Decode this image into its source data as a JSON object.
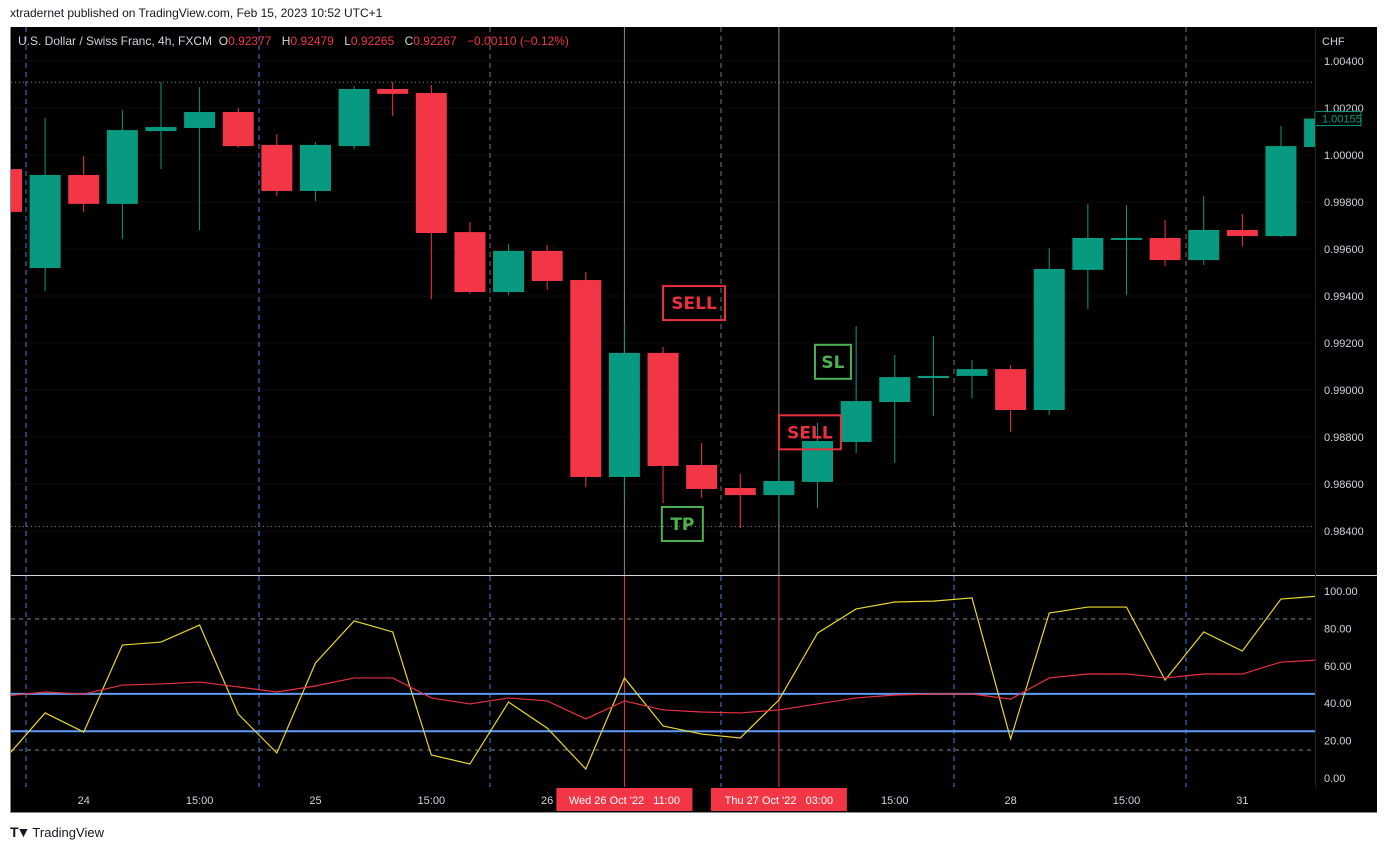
{
  "header": {
    "published": "xtradernet published on TradingView.com, Feb 15, 2023 10:52 UTC+1"
  },
  "legend": {
    "symbol": "U.S. Dollar / Swiss Franc, 4h, FXCM",
    "o_label": "O",
    "o": "0.92377",
    "h_label": "H",
    "h": "0.92479",
    "l_label": "L",
    "l": "0.92265",
    "c_label": "C",
    "c": "0.92267",
    "change": "−0.00110 (−0.12%)"
  },
  "footer": {
    "logo_text": "TradingView",
    "logo_mark": "17"
  },
  "colors": {
    "up": "#089981",
    "down": "#f23645",
    "osc_fast": "#e6d530",
    "osc_slow": "#e8313f",
    "level": "#5b9cf6",
    "signal_sell": "#e8313f",
    "signal_green": "#4caf50"
  },
  "chart_data": [
    {
      "type": "candlestick",
      "currency": "CHF",
      "ylim": [
        0.983,
        1.005
      ],
      "y_ticks": [
        "1.00400",
        "1.00200",
        "1.00000",
        "0.99800",
        "0.99600",
        "0.99400",
        "0.99200",
        "0.99000",
        "0.98800",
        "0.98600",
        "0.98400"
      ],
      "last_price": "1.00155",
      "x_labels": [
        {
          "index": 2,
          "text": "24"
        },
        {
          "index": 5,
          "text": "15:00"
        },
        {
          "index": 8,
          "text": "25"
        },
        {
          "index": 11,
          "text": "15:00"
        },
        {
          "index": 14,
          "text": "26"
        },
        {
          "index": 16,
          "text": "Wed 26 Oct '22   11:00",
          "highlight": true
        },
        {
          "index": 20,
          "text": "Thu 27 Oct '22   03:00",
          "highlight": true
        },
        {
          "index": 23,
          "text": "15:00"
        },
        {
          "index": 26,
          "text": "28"
        },
        {
          "index": 29,
          "text": "15:00"
        },
        {
          "index": 32,
          "text": "31"
        }
      ],
      "candles_ohlc": [
        [
          0.9994,
          0.99958,
          0.99745,
          0.99758
        ],
        [
          0.99519,
          1.00158,
          0.99421,
          0.99915
        ],
        [
          0.99915,
          0.99996,
          0.99758,
          0.99792
        ],
        [
          0.99792,
          1.00192,
          0.99642,
          1.00106
        ],
        [
          1.00102,
          1.00311,
          0.9994,
          1.00119
        ],
        [
          1.00115,
          1.00289,
          0.99681,
          1.00183
        ],
        [
          1.00183,
          1.002,
          1.0003,
          1.00038
        ],
        [
          1.00043,
          1.00089,
          0.99826,
          0.99847
        ],
        [
          0.99847,
          1.00055,
          0.99804,
          1.00043
        ],
        [
          1.00038,
          1.00294,
          1.00025,
          1.00281
        ],
        [
          1.00281,
          1.00311,
          1.00166,
          1.0026
        ],
        [
          1.00264,
          1.00298,
          0.99387,
          0.99668
        ],
        [
          0.99672,
          0.99715,
          0.99409,
          0.99417
        ],
        [
          0.99417,
          0.99621,
          0.99404,
          0.99592
        ],
        [
          0.99592,
          0.99617,
          0.99426,
          0.99464
        ],
        [
          0.99468,
          0.99502,
          0.98587,
          0.9863
        ],
        [
          0.9863,
          0.99281,
          0.98541,
          0.99158
        ],
        [
          0.99158,
          0.99183,
          0.98519,
          0.98677
        ],
        [
          0.98681,
          0.98775,
          0.98541,
          0.98579
        ],
        [
          0.98583,
          0.98643,
          0.98413,
          0.98553
        ],
        [
          0.98553,
          0.98702,
          0.98455,
          0.98613
        ],
        [
          0.98609,
          0.9886,
          0.98498,
          0.98783
        ],
        [
          0.98779,
          0.99272,
          0.98732,
          0.98953
        ],
        [
          0.98949,
          0.99149,
          0.9869,
          0.99055
        ],
        [
          0.99051,
          0.9923,
          0.98889,
          0.9906
        ],
        [
          0.9906,
          0.99128,
          0.98966,
          0.99089
        ],
        [
          0.99089,
          0.99106,
          0.98822,
          0.98915
        ],
        [
          0.98915,
          0.99604,
          0.98894,
          0.99515
        ],
        [
          0.99511,
          0.99792,
          0.99345,
          0.99647
        ],
        [
          0.99642,
          0.99787,
          0.99404,
          0.99647
        ],
        [
          0.99647,
          0.99723,
          0.99528,
          0.99553
        ],
        [
          0.99553,
          0.99826,
          0.99532,
          0.99681
        ],
        [
          0.99681,
          0.99749,
          0.99612,
          0.99655
        ],
        [
          0.99655,
          1.00124,
          0.99651,
          1.00038
        ],
        [
          1.00034,
          1.00166,
          1.0003,
          1.00155
        ]
      ],
      "annotations": [
        {
          "text": "SELL",
          "index": 17,
          "price": 0.9937,
          "color": "sell"
        },
        {
          "text": "TP",
          "index": 17.5,
          "price": 0.9843,
          "color": "green"
        },
        {
          "text": "SELL",
          "index": 20,
          "price": 0.9882,
          "color": "sell"
        },
        {
          "text": "SL",
          "index": 21.4,
          "price": 0.9912,
          "color": "green"
        }
      ],
      "price_levels_dotted": [
        1.0031,
        0.9842
      ]
    },
    {
      "type": "line",
      "ylim": [
        0,
        100
      ],
      "y_ticks": [
        "100.00",
        "80.00",
        "60.00",
        "40.00",
        "20.00",
        "0.00"
      ],
      "levels_solid": [
        45,
        25
      ],
      "levels_dashed": [
        85,
        15
      ],
      "series": [
        {
          "color": "#e6d530",
          "values": [
            11.2,
            34.8,
            24.6,
            71.1,
            72.7,
            81.8,
            34.2,
            13.4,
            61.5,
            84.0,
            78.1,
            12.3,
            7.5,
            40.6,
            26.7,
            4.8,
            53.5,
            27.8,
            23.5,
            21.4,
            41.7,
            77.5,
            90.4,
            94.1,
            94.6,
            96.3,
            20.9,
            88.2,
            91.4,
            91.4,
            52.4,
            78.1,
            67.9,
            95.7,
            97.3
          ]
        },
        {
          "color": "#e8313f",
          "values": [
            43.9,
            46.0,
            44.9,
            49.7,
            50.3,
            51.3,
            48.7,
            46.0,
            49.2,
            53.5,
            53.5,
            42.8,
            39.6,
            42.8,
            41.2,
            31.6,
            41.2,
            36.4,
            35.3,
            34.8,
            36.4,
            39.6,
            42.8,
            44.4,
            44.9,
            44.9,
            42.2,
            53.5,
            55.6,
            55.6,
            53.5,
            55.6,
            55.6,
            62.0,
            63.1
          ]
        }
      ]
    }
  ]
}
